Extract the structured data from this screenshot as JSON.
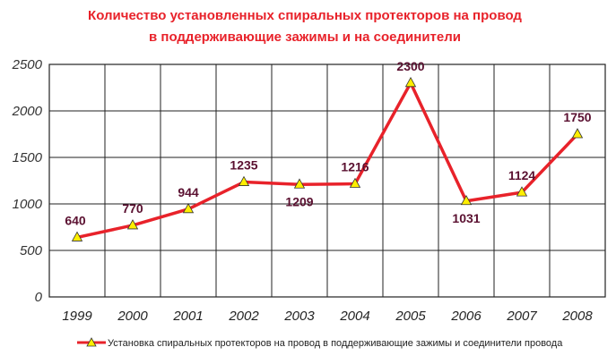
{
  "chart_data": {
    "type": "line",
    "title": [
      "Количество установленных спиральных протекторов на провод",
      "в поддерживающие зажимы и на соединители"
    ],
    "categories": [
      "1999",
      "2000",
      "2001",
      "2002",
      "2003",
      "2004",
      "2005",
      "2006",
      "2007",
      "2008"
    ],
    "series": [
      {
        "name": "Установка спиральных протекторов на провод в поддерживающие зажимы и соединители провода",
        "values": [
          640,
          770,
          944,
          1235,
          1209,
          1216,
          2300,
          1031,
          1124,
          1750
        ],
        "color": "#e8222a",
        "marker": "triangle",
        "marker_color": "#ffee00"
      }
    ],
    "ylim": [
      0,
      2500
    ],
    "yticks": [
      0,
      500,
      1000,
      1500,
      2000,
      2500
    ],
    "grid": true,
    "legend_position": "bottom",
    "data_labels": true,
    "xlabel": "",
    "ylabel": ""
  }
}
